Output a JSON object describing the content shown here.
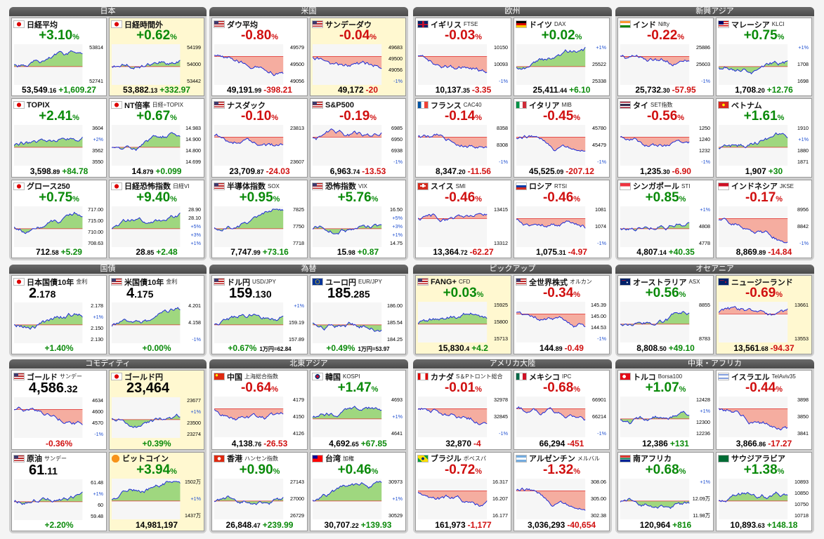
{
  "colors": {
    "up": "#0a8a0a",
    "down": "#d01010",
    "line": "#1a2ad8",
    "fill_up": "#8fd16a",
    "fill_down": "#f4a090"
  },
  "groups": [
    {
      "id": "japan",
      "title": "日本",
      "cards": [
        {
          "name": "日経平均",
          "sub": "",
          "flag": "jp",
          "pct": "+3.10",
          "dir": "up",
          "val_int": "53,549",
          "val_dec": ".16",
          "chg": "+1,609.27",
          "ticks": [
            "53814",
            "52741"
          ],
          "hl": false
        },
        {
          "name": "日経時間外",
          "sub": "",
          "flag": "jp",
          "pct": "+0.62",
          "dir": "up",
          "val_int": "53,882",
          "val_dec": ".13",
          "chg": "+332.97",
          "ticks": [
            "54199",
            "54000",
            "53442"
          ],
          "hl": true
        },
        {
          "name": "TOPIX",
          "sub": "",
          "flag": "jp",
          "pct": "+2.41",
          "dir": "up",
          "val_int": "3,598",
          "val_dec": ".89",
          "chg": "+84.78",
          "ticks": [
            "3604",
            "+2%",
            "3562",
            "3550"
          ],
          "hl": false
        },
        {
          "name": "NT倍率",
          "sub": "日経÷TOPIX",
          "flag": "jp",
          "pct": "+0.67",
          "dir": "up",
          "val_int": "14",
          "val_dec": ".879",
          "chg": "+0.099",
          "ticks": [
            "14.983",
            "14.900",
            "14.800",
            "14.699"
          ],
          "hl": false
        },
        {
          "name": "グロース250",
          "sub": "",
          "flag": "jp",
          "pct": "+0.75",
          "dir": "up",
          "val_int": "712",
          "val_dec": ".58",
          "chg": "+5.29",
          "ticks": [
            "717.00",
            "715.00",
            "710.00",
            "708.63"
          ],
          "hl": false
        },
        {
          "name": "日経恐怖指数",
          "sub": "日経VI",
          "flag": "jp",
          "pct": "+9.40",
          "dir": "up",
          "val_int": "28",
          "val_dec": ".85",
          "chg": "+2.48",
          "ticks": [
            "28.90",
            "28.10",
            "+5%",
            "+3%",
            "+1%"
          ],
          "hl": false
        }
      ]
    },
    {
      "id": "us",
      "title": "米国",
      "cards": [
        {
          "name": "ダウ平均",
          "sub": "",
          "flag": "us",
          "pct": "-0.80",
          "dir": "dn",
          "val_int": "49,191",
          "val_dec": ".99",
          "chg": "-398.21",
          "ticks": [
            "49579",
            "49500",
            "49056"
          ],
          "hl": false
        },
        {
          "name": "サンデーダウ",
          "sub": "",
          "flag": "us",
          "pct": "-0.04",
          "dir": "dn",
          "val_int": "49,172",
          "val_dec": "",
          "chg": "-20",
          "ticks": [
            "49683",
            "49500",
            "49056",
            "-1%"
          ],
          "hl": true
        },
        {
          "name": "ナスダック",
          "sub": "",
          "flag": "us",
          "pct": "-0.10",
          "dir": "dn",
          "val_int": "23,709",
          "val_dec": ".87",
          "chg": "-24.03",
          "ticks": [
            "23813",
            "23607"
          ],
          "hl": false
        },
        {
          "name": "S&P500",
          "sub": "",
          "flag": "us",
          "pct": "-0.19",
          "dir": "dn",
          "val_int": "6,963",
          "val_dec": ".74",
          "chg": "-13.53",
          "ticks": [
            "6985",
            "6950",
            "6938",
            "-1%"
          ],
          "hl": false
        },
        {
          "name": "半導体指数",
          "sub": "SOX",
          "flag": "us",
          "pct": "+0.95",
          "dir": "up",
          "val_int": "7,747",
          "val_dec": ".99",
          "chg": "+73.16",
          "ticks": [
            "7825",
            "7750",
            "7718"
          ],
          "hl": false
        },
        {
          "name": "恐怖指数",
          "sub": "VIX",
          "flag": "us",
          "pct": "+5.76",
          "dir": "up",
          "val_int": "15",
          "val_dec": ".98",
          "chg": "+0.87",
          "ticks": [
            "16.50",
            "+5%",
            "+3%",
            "+1%",
            "14.75"
          ],
          "hl": false
        }
      ]
    },
    {
      "id": "europe",
      "title": "欧州",
      "cards": [
        {
          "name": "イギリス",
          "sub": "FTSE",
          "flag": "gb",
          "pct": "-0.03",
          "dir": "dn",
          "val_int": "10,137",
          "val_dec": ".35",
          "chg": "-3.35",
          "ticks": [
            "10150",
            "10093",
            "-1%"
          ],
          "hl": false
        },
        {
          "name": "ドイツ",
          "sub": "DAX",
          "flag": "de",
          "pct": "+0.02",
          "dir": "up",
          "val_int": "25,411",
          "val_dec": ".44",
          "chg": "+6.10",
          "ticks": [
            "+1%",
            "25522",
            "25338"
          ],
          "hl": false
        },
        {
          "name": "フランス",
          "sub": "CAC40",
          "flag": "fr",
          "pct": "-0.14",
          "dir": "dn",
          "val_int": "8,347",
          "val_dec": ".20",
          "chg": "-11.56",
          "ticks": [
            "8358",
            "8308",
            "-1%"
          ],
          "hl": false
        },
        {
          "name": "イタリア",
          "sub": "MIB",
          "flag": "it",
          "pct": "-0.45",
          "dir": "dn",
          "val_int": "45,525",
          "val_dec": ".09",
          "chg": "-207.12",
          "ticks": [
            "45780",
            "45479",
            "-1%"
          ],
          "hl": false
        },
        {
          "name": "スイス",
          "sub": "SMI",
          "flag": "ch",
          "pct": "-0.46",
          "dir": "dn",
          "val_int": "13,364",
          "val_dec": ".72",
          "chg": "-62.27",
          "ticks": [
            "13415",
            "13312"
          ],
          "hl": false
        },
        {
          "name": "ロシア",
          "sub": "RTSI",
          "flag": "ru",
          "pct": "-0.46",
          "dir": "dn",
          "val_int": "1,075",
          "val_dec": ".31",
          "chg": "-4.97",
          "ticks": [
            "1081",
            "1074",
            "-1%"
          ],
          "hl": false
        }
      ]
    },
    {
      "id": "asia",
      "title": "新興アジア",
      "cards": [
        {
          "name": "インド",
          "sub": "Nifty",
          "flag": "in",
          "pct": "-0.22",
          "dir": "dn",
          "val_int": "25,732",
          "val_dec": ".30",
          "chg": "-57.95",
          "ticks": [
            "25886",
            "25603",
            "-1%"
          ],
          "hl": false
        },
        {
          "name": "マレーシア",
          "sub": "KLCI",
          "flag": "my",
          "pct": "+0.75",
          "dir": "up",
          "val_int": "1,708",
          "val_dec": ".20",
          "chg": "+12.76",
          "ticks": [
            "+1%",
            "1708",
            "1698"
          ],
          "hl": false
        },
        {
          "name": "タイ",
          "sub": "SET指数",
          "flag": "th",
          "pct": "-0.56",
          "dir": "dn",
          "val_int": "1,235",
          "val_dec": ".30",
          "chg": "-6.90",
          "ticks": [
            "1250",
            "1240",
            "1232",
            "-1%"
          ],
          "hl": false
        },
        {
          "name": "ベトナム",
          "sub": "",
          "flag": "vn",
          "pct": "+1.61",
          "dir": "up",
          "val_int": "1,907",
          "val_dec": "",
          "chg": "+30",
          "ticks": [
            "1910",
            "+1%",
            "1880",
            "1871"
          ],
          "hl": false
        },
        {
          "name": "シンガポール",
          "sub": "STI",
          "flag": "sg",
          "pct": "+0.85",
          "dir": "up",
          "val_int": "4,807",
          "val_dec": ".14",
          "chg": "+40.35",
          "ticks": [
            "+1%",
            "4808",
            "4778"
          ],
          "hl": false
        },
        {
          "name": "インドネシア",
          "sub": "JKSE",
          "flag": "id",
          "pct": "-0.17",
          "dir": "dn",
          "val_int": "8,869",
          "val_dec": ".89",
          "chg": "-14.84",
          "ticks": [
            "8956",
            "8842",
            "-1%"
          ],
          "hl": false
        }
      ]
    },
    {
      "id": "bonds",
      "title": "国債",
      "cards": [
        {
          "name": "日本国債10年",
          "sub": "金利",
          "flag": "jp",
          "big_int": "2",
          "big_dec": ".178",
          "pct_small": "+1.40%",
          "dir": "up",
          "ticks": [
            "2.178",
            "+1%",
            "2.150",
            "2.130"
          ],
          "hl": false
        },
        {
          "name": "米国債10年",
          "sub": "金利",
          "flag": "us",
          "big_int": "4",
          "big_dec": ".175",
          "pct_small": "+0.00%",
          "dir": "up",
          "ticks": [
            "4.201",
            "4.158",
            "-1%"
          ],
          "hl": false
        }
      ]
    },
    {
      "id": "fx",
      "title": "為替",
      "cards": [
        {
          "name": "ドル円",
          "sub": "USD/JPY",
          "flag": "us",
          "big_int": "159",
          "big_dec": ".130",
          "pct_small": "+0.67%",
          "dir": "up",
          "extra": "1万円=62.84",
          "ticks": [
            "+1%",
            "159.19",
            "157.89"
          ],
          "hl": false
        },
        {
          "name": "ユーロ円",
          "sub": "EUR/JPY",
          "flag": "eu",
          "big_int": "185",
          "big_dec": ".285",
          "pct_small": "+0.49%",
          "dir": "up",
          "extra": "1万円=53.97",
          "ticks": [
            "186.00",
            "185.54",
            "184.25"
          ],
          "hl": false
        }
      ]
    },
    {
      "id": "pickup",
      "title": "ピックアップ",
      "cards": [
        {
          "name": "FANG+",
          "sub": "CFD",
          "flag": "us",
          "pct": "+0.03",
          "dir": "up",
          "val_int": "15,830",
          "val_dec": ".4",
          "chg": "+4.2",
          "ticks": [
            "15925",
            "15800",
            "15713"
          ],
          "hl": true
        },
        {
          "name": "全世界株式",
          "sub": "オルカン",
          "flag": "us",
          "pct": "-0.34",
          "dir": "dn",
          "val_int": "144",
          "val_dec": ".89",
          "chg": "-0.49",
          "ticks": [
            "145.39",
            "145.00",
            "144.53",
            "-1%"
          ],
          "hl": false
        }
      ]
    },
    {
      "id": "oceania",
      "title": "オセアニア",
      "cards": [
        {
          "name": "オーストラリア",
          "sub": "ASX",
          "flag": "au",
          "pct": "+0.56",
          "dir": "up",
          "val_int": "8,808",
          "val_dec": ".50",
          "chg": "+49.10",
          "ticks": [
            "8855",
            "8783"
          ],
          "hl": false
        },
        {
          "name": "ニュージーランド",
          "sub": "",
          "flag": "nz",
          "pct": "-0.69",
          "dir": "dn",
          "val_int": "13,561",
          "val_dec": ".68",
          "chg": "-94.37",
          "ticks": [
            "13661",
            "13553"
          ],
          "hl": true
        }
      ]
    },
    {
      "id": "commodity",
      "title": "コモディティ",
      "cards": [
        {
          "name": "ゴールド",
          "sub": "サンデー",
          "flag": "us",
          "big_int": "4,586",
          "big_dec": ".32",
          "pct_small": "-0.36%",
          "dir": "dn",
          "ticks": [
            "4634",
            "4600",
            "4570",
            "-1%"
          ],
          "hl": false
        },
        {
          "name": "ゴールド円",
          "sub": "",
          "flag": "jp",
          "big_int": "23,464",
          "big_dec": "",
          "pct_small": "+0.39%",
          "dir": "up",
          "ticks": [
            "23677",
            "+1%",
            "23500",
            "23274"
          ],
          "hl": true
        },
        {
          "name": "原油",
          "sub": "サンデー",
          "flag": "us",
          "big_int": "61",
          "big_dec": ".11",
          "pct_small": "+2.20%",
          "dir": "up",
          "ticks": [
            "61.48",
            "+1%",
            "60",
            "59.48"
          ],
          "hl": false
        },
        {
          "name": "ビットコイン",
          "sub": "",
          "flag": "btc",
          "pct": "+3.94",
          "dir": "up",
          "val_int": "14,981,197",
          "val_dec": "",
          "chg": "",
          "ticks": [
            "1502万",
            "+1%",
            "1437万"
          ],
          "hl": true
        }
      ]
    },
    {
      "id": "neasia",
      "title": "北東アジア",
      "cards": [
        {
          "name": "中国",
          "sub": "上海総合指数",
          "flag": "cn",
          "pct": "-0.64",
          "dir": "dn",
          "val_int": "4,138",
          "val_dec": ".76",
          "chg": "-26.53",
          "ticks": [
            "4179",
            "4150",
            "4126"
          ],
          "hl": false
        },
        {
          "name": "韓国",
          "sub": "KOSPI",
          "flag": "kr",
          "pct": "+1.47",
          "dir": "up",
          "val_int": "4,692",
          "val_dec": ".65",
          "chg": "+67.85",
          "ticks": [
            "4693",
            "+1%",
            "4641"
          ],
          "hl": false
        },
        {
          "name": "香港",
          "sub": "ハンセン指数",
          "flag": "hk",
          "pct": "+0.90",
          "dir": "up",
          "val_int": "26,848",
          "val_dec": ".47",
          "chg": "+239.99",
          "ticks": [
            "27143",
            "27000",
            "26729"
          ],
          "hl": false
        },
        {
          "name": "台湾",
          "sub": "加権",
          "flag": "tw",
          "pct": "+0.46",
          "dir": "up",
          "val_int": "30,707",
          "val_dec": ".22",
          "chg": "+139.93",
          "ticks": [
            "30973",
            "+1%",
            "30529"
          ],
          "hl": false
        }
      ]
    },
    {
      "id": "americas",
      "title": "アメリカ大陸",
      "cards": [
        {
          "name": "カナダ",
          "sub": "S＆Pトロント総合",
          "flag": "ca",
          "pct": "-0.01",
          "dir": "dn",
          "val_int": "32,870",
          "val_dec": "",
          "chg": "-4",
          "ticks": [
            "32978",
            "32845",
            "-1%"
          ],
          "hl": false
        },
        {
          "name": "メキシコ",
          "sub": "IPC",
          "flag": "mx",
          "pct": "-0.68",
          "dir": "dn",
          "val_int": "66,294",
          "val_dec": "",
          "chg": "-451",
          "ticks": [
            "66901",
            "66214",
            "-1%"
          ],
          "hl": false
        },
        {
          "name": "ブラジル",
          "sub": "ボベスパ",
          "flag": "br",
          "pct": "-0.72",
          "dir": "dn",
          "val_int": "161,973",
          "val_dec": "",
          "chg": "-1,177",
          "ticks": [
            "16.317",
            "16.207",
            "16.177"
          ],
          "hl": false
        },
        {
          "name": "アルゼンチン",
          "sub": "メルバル",
          "flag": "ar",
          "pct": "-1.32",
          "dir": "dn",
          "val_int": "3,036,293",
          "val_dec": "",
          "chg": "-40,654",
          "ticks": [
            "308.06",
            "305.00",
            "302.38"
          ],
          "hl": false
        }
      ]
    },
    {
      "id": "mea",
      "title": "中東・アフリカ",
      "cards": [
        {
          "name": "トルコ",
          "sub": "Borsa100",
          "flag": "tr",
          "pct": "+1.07",
          "dir": "up",
          "val_int": "12,386",
          "val_dec": "",
          "chg": "+131",
          "ticks": [
            "12428",
            "+1%",
            "12300",
            "12236"
          ],
          "hl": false
        },
        {
          "name": "イスラエル",
          "sub": "TelAviv35",
          "flag": "il",
          "pct": "-0.44",
          "dir": "dn",
          "val_int": "3,866",
          "val_dec": ".86",
          "chg": "-17.27",
          "ticks": [
            "3898",
            "3850",
            "3841"
          ],
          "hl": false
        },
        {
          "name": "南アフリカ",
          "sub": "",
          "flag": "za",
          "pct": "+0.68",
          "dir": "up",
          "val_int": "120,964",
          "val_dec": "",
          "chg": "+816",
          "ticks": [
            "+1%",
            "12.09万",
            "11.98万"
          ],
          "hl": false
        },
        {
          "name": "サウジアラビア",
          "sub": "",
          "flag": "sa",
          "pct": "+1.38",
          "dir": "up",
          "val_int": "10,893",
          "val_dec": ".63",
          "chg": "+148.18",
          "ticks": [
            "10893",
            "10850",
            "10750",
            "10718"
          ],
          "hl": false
        }
      ]
    }
  ]
}
